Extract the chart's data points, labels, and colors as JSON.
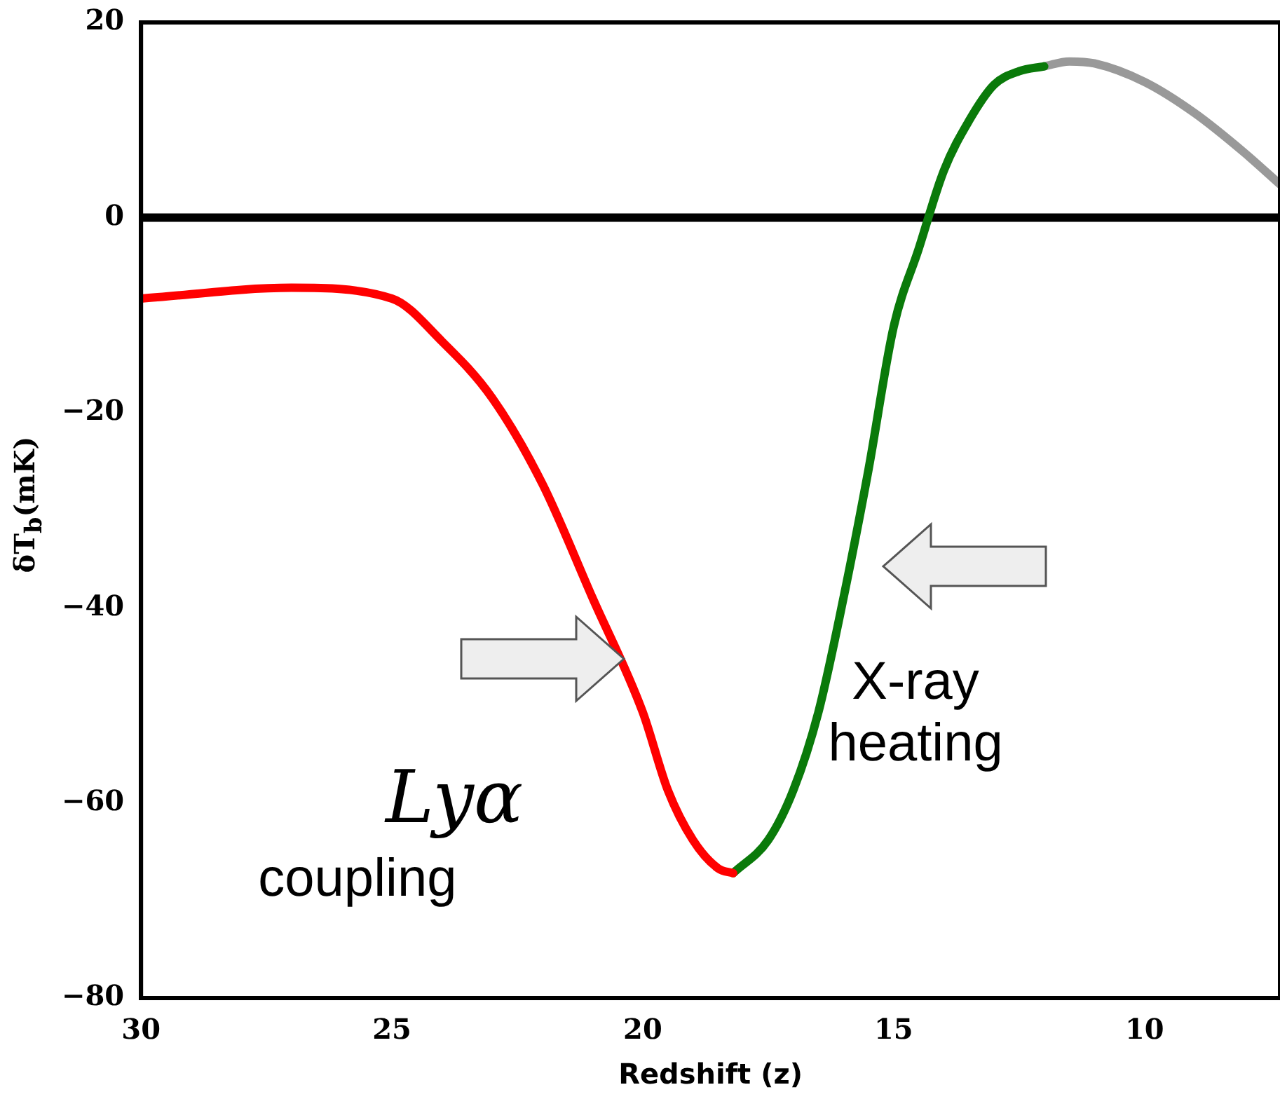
{
  "chart_data": {
    "type": "line",
    "xlabel": "Redshift (z)",
    "ylabel": "δT$_{b}$(mK)",
    "xlim": [
      30,
      7.3
    ],
    "xticks": [
      30,
      25,
      20,
      15,
      10
    ],
    "ylim": [
      -80,
      20
    ],
    "yticks": [
      20,
      0,
      {
        "value": -20,
        "label": "−20"
      },
      {
        "value": -40,
        "label": "−40"
      },
      {
        "value": -60,
        "label": "−60"
      },
      {
        "value": -80,
        "label": "−80"
      }
    ],
    "grid": false,
    "legend": false,
    "line_style": "solid",
    "marker": "none",
    "series": [
      {
        "color": "#ff0000",
        "x": [
          30,
          27,
          25,
          24,
          23,
          22,
          21,
          20,
          19.5,
          19,
          18.5,
          18.2
        ],
        "values": [
          -8.3,
          -7.2,
          -8.3,
          -12.7,
          -18.5,
          -27.3,
          -39,
          -50.7,
          -58.7,
          -63.8,
          -66.7,
          -67.2
        ]
      },
      {
        "color": "#0a7a0a",
        "x": [
          18.2,
          17.5,
          17,
          16.5,
          16,
          15.5,
          15,
          14.5,
          14,
          13.5,
          13,
          12.5,
          12
        ],
        "values": [
          -67.2,
          -63.8,
          -58.7,
          -50.7,
          -39,
          -25.8,
          -11.2,
          -3.2,
          4.8,
          9.9,
          13.6,
          15,
          15.5
        ]
      },
      {
        "color": "#999999",
        "x": [
          12,
          11.5,
          11,
          10,
          9,
          8,
          7.3
        ],
        "values": [
          15.5,
          16,
          15.8,
          13.9,
          10.7,
          6.6,
          3.4
        ]
      }
    ],
    "ref_lines": [
      {
        "axis": "y",
        "value": 0,
        "color": "#000000"
      }
    ],
    "annotations": [
      "Lyα",
      "coupling",
      "X-ray heating"
    ]
  }
}
